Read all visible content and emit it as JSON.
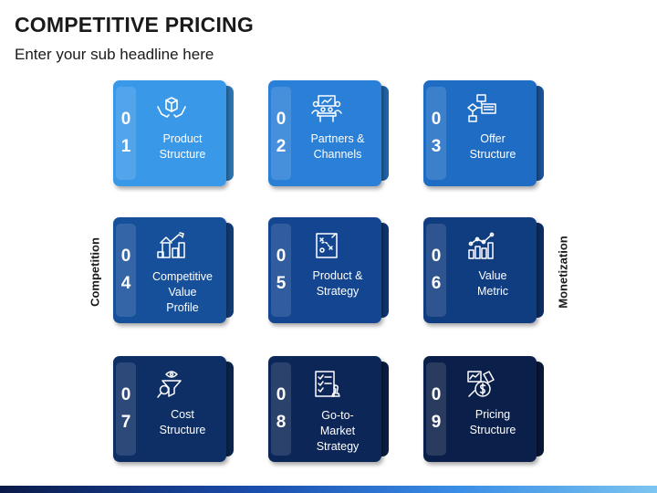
{
  "header": {
    "title": "COMPETITIVE PRICING",
    "subtitle": "Enter your sub headline here"
  },
  "side_labels": {
    "left": "Competition",
    "right": "Monetization"
  },
  "cards": [
    {
      "digit1": "0",
      "digit2": "1",
      "label_lines": [
        "Product",
        "Structure"
      ],
      "icon": "product-box-hands-icon",
      "color": "#3a98e8"
    },
    {
      "digit1": "0",
      "digit2": "2",
      "label_lines": [
        "Partners &",
        "Channels"
      ],
      "icon": "partners-meeting-icon",
      "color": "#2a7fd6"
    },
    {
      "digit1": "0",
      "digit2": "3",
      "label_lines": [
        "Offer",
        "Structure"
      ],
      "icon": "flowchart-icon",
      "color": "#1f6cc4"
    },
    {
      "digit1": "0",
      "digit2": "4",
      "label_lines": [
        "Competitive",
        "Value",
        "Profile"
      ],
      "icon": "building-growth-chart-icon",
      "color": "#164f9a"
    },
    {
      "digit1": "0",
      "digit2": "5",
      "label_lines": [
        "Product &",
        "Strategy"
      ],
      "icon": "strategy-board-icon",
      "color": "#134590"
    },
    {
      "digit1": "0",
      "digit2": "6",
      "label_lines": [
        "Value",
        "Metric"
      ],
      "icon": "bar-chart-trend-icon",
      "color": "#103c80"
    },
    {
      "digit1": "0",
      "digit2": "7",
      "label_lines": [
        "Cost",
        "Structure"
      ],
      "icon": "cost-funnel-magnifier-icon",
      "color": "#0e2f66"
    },
    {
      "digit1": "0",
      "digit2": "8",
      "label_lines": [
        "Go-to-",
        "Market",
        "Strategy"
      ],
      "icon": "checklist-chess-icon",
      "color": "#0c2657"
    },
    {
      "digit1": "0",
      "digit2": "9",
      "label_lines": [
        "Pricing",
        "Structure"
      ],
      "icon": "pricing-dollar-chart-icon",
      "color": "#0a1f49"
    }
  ]
}
